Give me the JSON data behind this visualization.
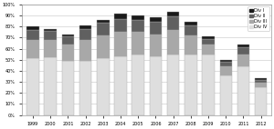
{
  "years": [
    "1999",
    "2000",
    "2001",
    "2002",
    "2003",
    "2004",
    "2005",
    "2006",
    "2007",
    "2008",
    "2009",
    "2010",
    "2011",
    "2012"
  ],
  "div_I": [
    3,
    2,
    2,
    3,
    3,
    5,
    4,
    4,
    4,
    3,
    2,
    2,
    3,
    1
  ],
  "div_II": [
    9,
    8,
    7,
    10,
    11,
    12,
    11,
    11,
    12,
    9,
    5,
    4,
    6,
    3
  ],
  "div_III": [
    17,
    16,
    15,
    19,
    21,
    22,
    20,
    20,
    22,
    17,
    9,
    8,
    11,
    4
  ],
  "div_IV": [
    51,
    52,
    49,
    49,
    51,
    53,
    55,
    53,
    55,
    55,
    55,
    36,
    44,
    25
  ],
  "colors": [
    "#1a1a1a",
    "#606060",
    "#a8a8a8",
    "#dedede"
  ],
  "legend_labels": [
    "Div I",
    "Div II",
    "Div III",
    "Div IV"
  ],
  "ylim": [
    0,
    100
  ],
  "yticks": [
    0,
    10,
    20,
    30,
    40,
    50,
    60,
    70,
    80,
    90,
    100
  ],
  "ytick_labels": [
    "0%",
    "10%",
    "20%",
    "30%",
    "40%",
    "50%",
    "60%",
    "70%",
    "80%",
    "90%",
    "100%"
  ],
  "background_color": "#ffffff",
  "grid_color": "#d0d0d0"
}
